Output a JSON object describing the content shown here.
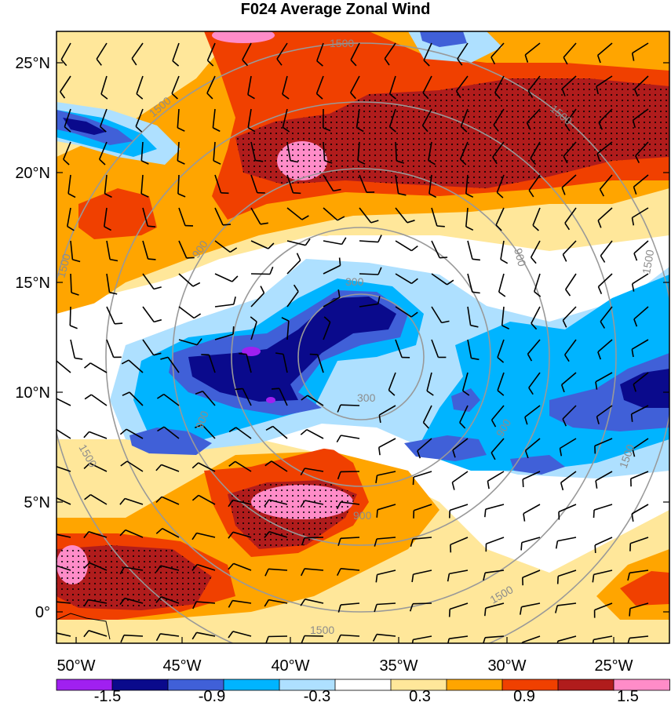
{
  "title": "F024 Average Zonal Wind",
  "map": {
    "lat_labels": [
      "25°N",
      "20°N",
      "15°N",
      "10°N",
      "5°N",
      "0°"
    ],
    "lon_labels": [
      "50°W",
      "45°W",
      "40°W",
      "35°W",
      "30°W",
      "25°W"
    ],
    "contour_labels": [
      "1500",
      "1500",
      "1500",
      "900",
      "1500",
      "300",
      "300",
      "900",
      "900",
      "1500",
      "1500",
      "1500",
      "900",
      "1500",
      "900"
    ],
    "stipple": "dotted regions mark strong positive anomalies",
    "colors": {
      "purple": "#a020f0",
      "navy": "#0a0a8c",
      "royal_blue": "#4060d8",
      "sky_blue": "#00b4ff",
      "light_blue": "#aee0ff",
      "white": "#ffffff",
      "light_yellow": "#ffe79a",
      "orange": "#ffa500",
      "red_orange": "#f04000",
      "dark_red": "#b01c1c",
      "pink": "#ff8cc8"
    }
  },
  "colorbar": {
    "labels": [
      "-1.5",
      "-0.9",
      "-0.3",
      "0.3",
      "0.9",
      "1.5"
    ],
    "colors": [
      "#a020f0",
      "#0a0a8c",
      "#4060d8",
      "#00b4ff",
      "#aee0ff",
      "#ffffff",
      "#ffe79a",
      "#ffa500",
      "#f04000",
      "#b01c1c",
      "#ff8cc8"
    ]
  }
}
